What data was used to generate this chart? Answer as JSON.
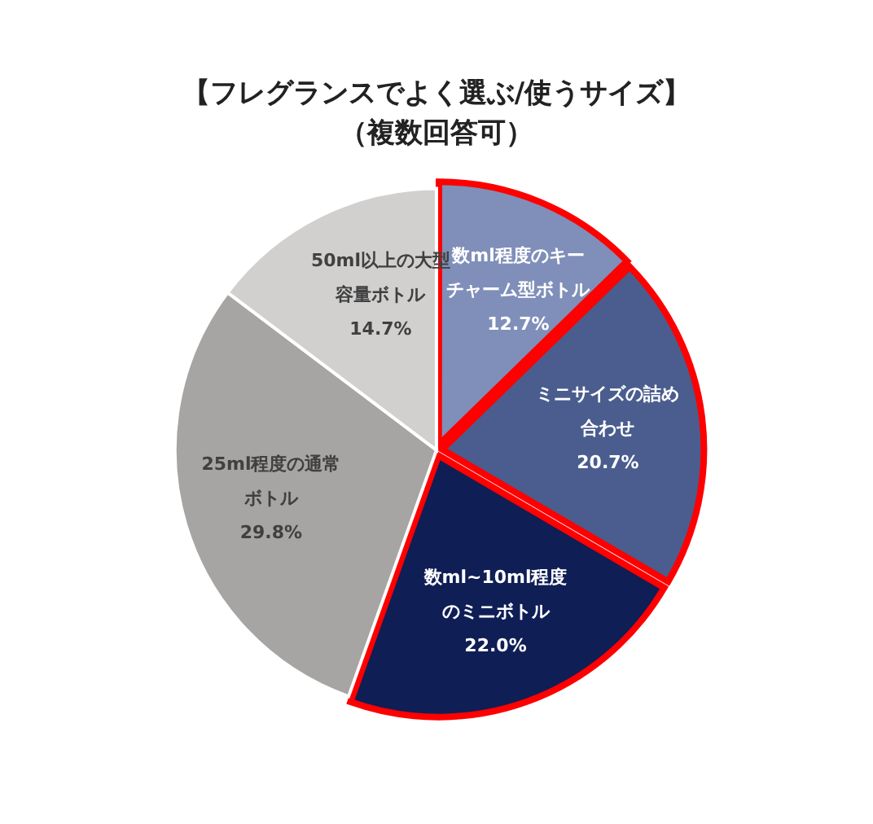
{
  "chart_data": {
    "type": "pie",
    "title": "【フレグランスでよく選ぶ/使うサイズ】",
    "subtitle": "（複数回答可）",
    "categories": [
      "数ml程度のキーチャーム型ボトル",
      "ミニサイズの詰め合わせ",
      "数ml~10ml程度のミニボトル",
      "25ml程度の通常ボトル",
      "50ml以上の大型容量ボトル"
    ],
    "values": [
      12.7,
      20.7,
      22.0,
      29.8,
      14.7
    ],
    "value_labels": [
      "12.7%",
      "20.7%",
      "22.0%",
      "29.8%",
      "14.7%"
    ],
    "colors": [
      "#7f8fb9",
      "#4a5d8e",
      "#0f1e55",
      "#a7a5a3",
      "#d1d0cf"
    ],
    "legend": false
  }
}
